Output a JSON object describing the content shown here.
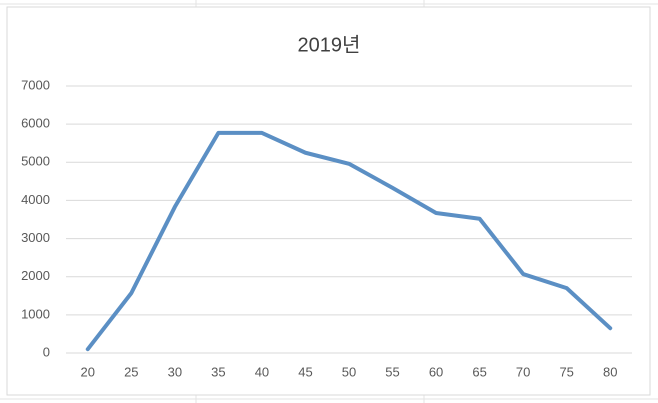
{
  "chart_data": {
    "type": "line",
    "title": "2019년",
    "categories": [
      "20",
      "25",
      "30",
      "35",
      "40",
      "45",
      "50",
      "55",
      "60",
      "65",
      "70",
      "75",
      "80"
    ],
    "series": [
      {
        "name": "2019년",
        "color": "#5b8fc4",
        "values": [
          100,
          1570,
          3830,
          5770,
          5770,
          5250,
          4960,
          4330,
          3670,
          3520,
          2070,
          1700,
          650
        ]
      }
    ],
    "ylim": [
      0,
      7000
    ],
    "yticks": [
      0,
      1000,
      2000,
      3000,
      4000,
      5000,
      6000,
      7000
    ],
    "grid": true
  }
}
